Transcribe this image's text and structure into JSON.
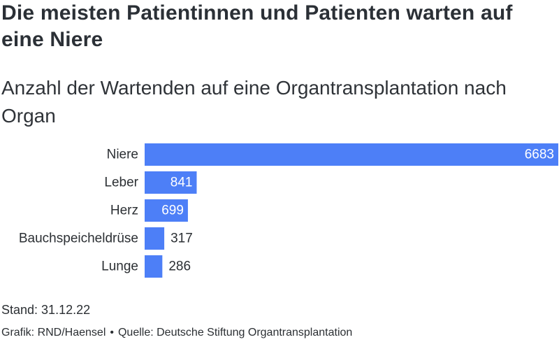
{
  "header": {
    "title": "Die meisten Patientinnen und Patienten warten auf eine Niere",
    "subtitle": "Anzahl der Wartenden auf eine Organtransplantation nach Organ"
  },
  "footer": {
    "note": "Stand: 31.12.22",
    "credit_author": "Grafik: RND/Haensel",
    "credit_separator": "•",
    "credit_source": "Quelle: Deutsche Stiftung Organtransplantation"
  },
  "colors": {
    "bar": "#4d7ff7",
    "label_inside": "#ffffff",
    "label_outside": "#2b2f33"
  },
  "chart_data": {
    "type": "bar",
    "orientation": "horizontal",
    "categories": [
      "Niere",
      "Leber",
      "Herz",
      "Bauchspeicheldrüse",
      "Lunge"
    ],
    "values": [
      6683,
      841,
      699,
      317,
      286
    ],
    "title": "Die meisten Patientinnen und Patienten warten auf eine Niere",
    "subtitle": "Anzahl der Wartenden auf eine Organtransplantation nach Organ",
    "xlabel": "",
    "ylabel": "",
    "xlim": [
      0,
      6683
    ],
    "grid": false,
    "legend": "none"
  }
}
